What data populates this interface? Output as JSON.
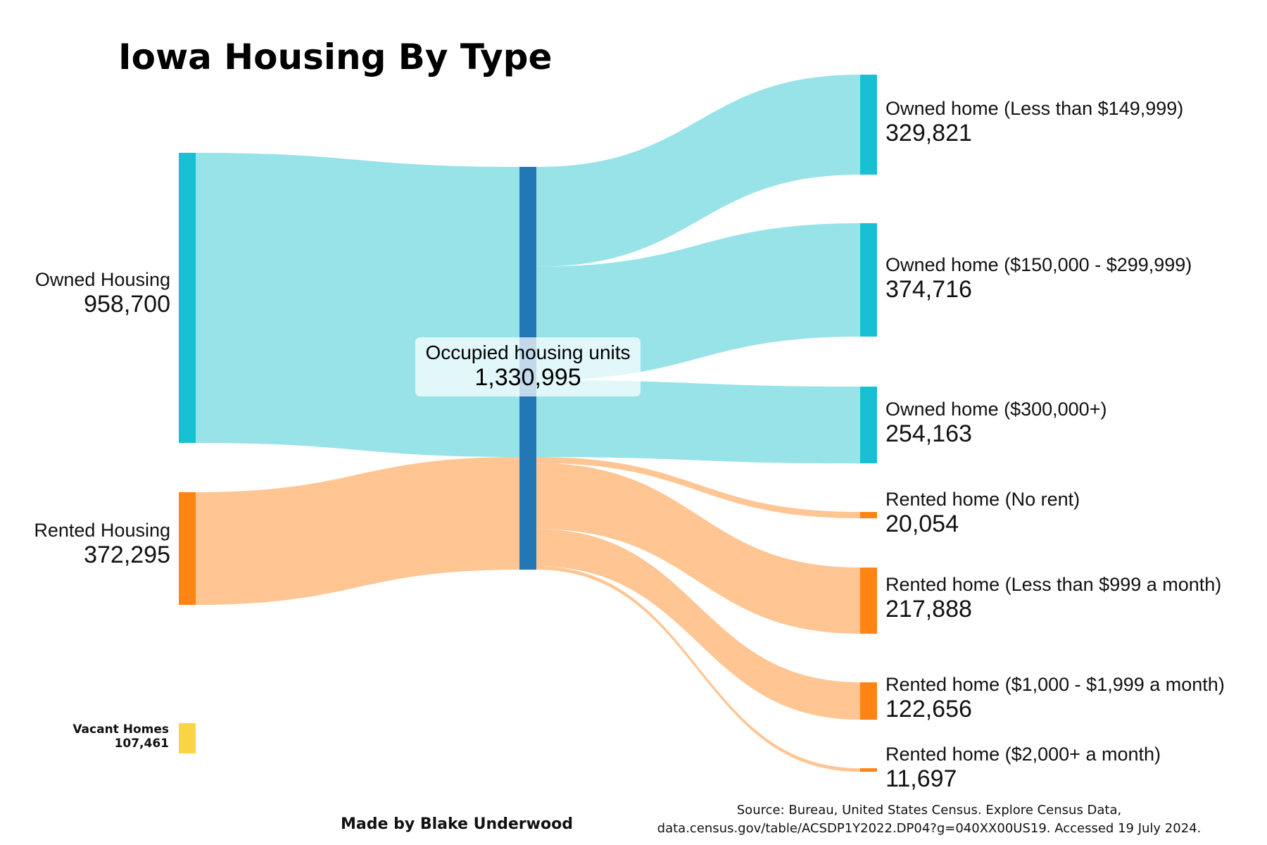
{
  "title": "Iowa Housing By Type",
  "colors": {
    "owned_node": "#19bfd2",
    "owned_link": "#98e3e8",
    "rented_node": "#ff8414",
    "rented_link": "#ffc593",
    "center_node": "#2277b5",
    "vacant_node": "#fbd444"
  },
  "nodes": {
    "owned_housing": {
      "name": "Owned Housing",
      "value": "958,700"
    },
    "rented_housing": {
      "name": "Rented Housing",
      "value": "372,295"
    },
    "vacant": {
      "name": "Vacant Homes",
      "value": "107,461"
    },
    "occupied": {
      "name": "Occupied housing units",
      "value": "1,330,995"
    },
    "owned_lt_150": {
      "name": "Owned home (Less than $149,999)",
      "value": "329,821"
    },
    "owned_150_300": {
      "name": "Owned home ($150,000 - $299,999)",
      "value": "374,716"
    },
    "owned_300_plus": {
      "name": "Owned home ($300,000+)",
      "value": "254,163"
    },
    "rented_no_rent": {
      "name": "Rented home (No rent)",
      "value": "20,054"
    },
    "rented_lt_999": {
      "name": "Rented home (Less than $999 a month)",
      "value": "217,888"
    },
    "rented_1000_1999": {
      "name": "Rented home ($1,000 - $1,999 a month)",
      "value": "122,656"
    },
    "rented_2000_plus": {
      "name": "Rented home ($2,000+ a month)",
      "value": "11,697"
    }
  },
  "links": [
    {
      "from": "owned_housing",
      "to": "occupied",
      "value": 958700
    },
    {
      "from": "rented_housing",
      "to": "occupied",
      "value": 372295
    },
    {
      "from": "occupied",
      "to": "owned_lt_150",
      "value": 329821
    },
    {
      "from": "occupied",
      "to": "owned_150_300",
      "value": 374716
    },
    {
      "from": "occupied",
      "to": "owned_300_plus",
      "value": 254163
    },
    {
      "from": "occupied",
      "to": "rented_no_rent",
      "value": 20054
    },
    {
      "from": "occupied",
      "to": "rented_lt_999",
      "value": 217888
    },
    {
      "from": "occupied",
      "to": "rented_1000_1999",
      "value": 122656
    },
    {
      "from": "occupied",
      "to": "rented_2000_plus",
      "value": 11697
    }
  ],
  "credit": "Made by Blake Underwood",
  "source_line1": "Source: Bureau, United States Census. Explore Census Data,",
  "source_line2": "data.census.gov/table/ACSDP1Y2022.DP04?g=040XX00US19. Accessed 19 July 2024."
}
